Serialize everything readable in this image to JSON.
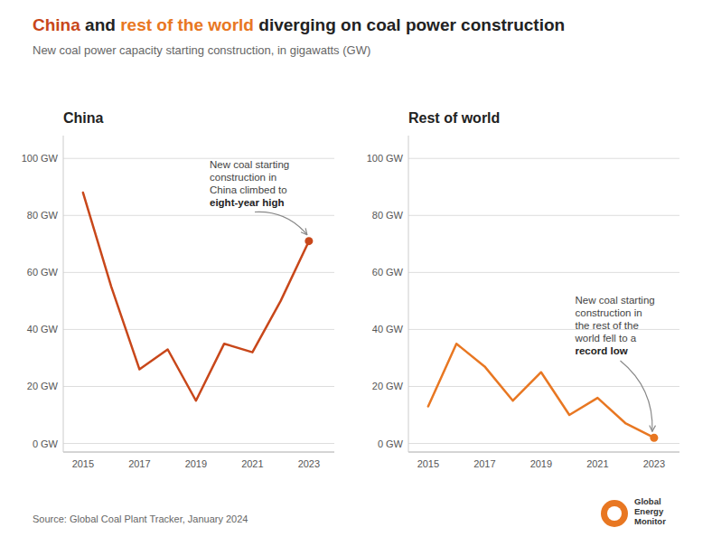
{
  "title": [
    {
      "text": "China",
      "color": "#C8471A"
    },
    {
      "text": "and",
      "color": "#222222"
    },
    {
      "text": "rest of the world",
      "color": "#E87722"
    },
    {
      "text": "diverging on coal power construction",
      "color": "#222222"
    }
  ],
  "subtitle": "New coal power capacity starting construction, in gigawatts (GW)",
  "source": "Source: Global Coal Plant Tracker, January 2024",
  "logo": "Global Energy Monitor",
  "chart_data": [
    {
      "type": "line",
      "title": "China",
      "x": [
        2015,
        2016,
        2017,
        2018,
        2019,
        2020,
        2021,
        2022,
        2023
      ],
      "series": [
        {
          "color": "#C8471A",
          "values": [
            88,
            55,
            26,
            33,
            15,
            35,
            32,
            50,
            71
          ]
        }
      ],
      "xlim": [
        2014.3,
        2023.9
      ],
      "ylim": [
        -3,
        108
      ],
      "xticks": [
        2015,
        2017,
        2019,
        2021,
        2023
      ],
      "yticks": [
        {
          "value": 0,
          "label": "0 GW"
        },
        {
          "value": 20,
          "label": "20 GW"
        },
        {
          "value": 40,
          "label": "40 GW"
        },
        {
          "value": 60,
          "label": "60 GW"
        },
        {
          "value": 80,
          "label": "80 GW"
        },
        {
          "value": 100,
          "label": "100 GW"
        }
      ],
      "grid": true,
      "annotations": [
        {
          "text": "New coal starting\nconstruction in\nChina climbed to",
          "highlight": "eight-year high",
          "x": 2023,
          "y": 71
        }
      ]
    },
    {
      "type": "line",
      "title": "Rest of world",
      "x": [
        2015,
        2016,
        2017,
        2018,
        2019,
        2020,
        2021,
        2022,
        2023
      ],
      "series": [
        {
          "color": "#E87722",
          "values": [
            13,
            35,
            27,
            15,
            25,
            10,
            16,
            7,
            2
          ]
        }
      ],
      "xlim": [
        2014.3,
        2023.9
      ],
      "ylim": [
        -3,
        108
      ],
      "xticks": [
        2015,
        2017,
        2019,
        2021,
        2023
      ],
      "yticks": [
        {
          "value": 0,
          "label": "0 GW"
        },
        {
          "value": 20,
          "label": "20 GW"
        },
        {
          "value": 40,
          "label": "40 GW"
        },
        {
          "value": 60,
          "label": "60 GW"
        },
        {
          "value": 80,
          "label": "80 GW"
        },
        {
          "value": 100,
          "label": "100 GW"
        }
      ],
      "grid": true,
      "annotations": [
        {
          "text": "New coal starting\nconstruction in\nthe rest of the\nworld fell to a",
          "highlight": "record low",
          "x": 2023,
          "y": 2
        }
      ]
    }
  ]
}
